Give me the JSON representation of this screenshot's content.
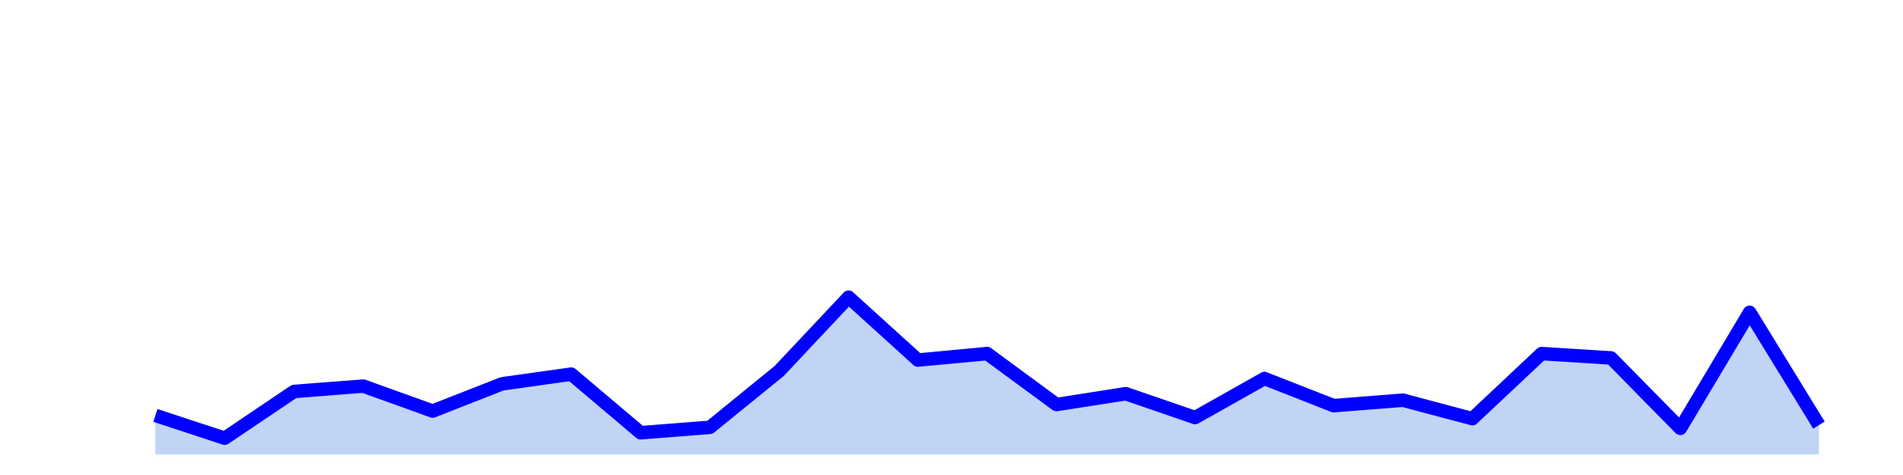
{
  "chart_data": {
    "type": "area",
    "title": "",
    "xlabel": "",
    "ylabel": "",
    "x": [
      1,
      2,
      3,
      4,
      5,
      6,
      7,
      8,
      9,
      10,
      11,
      12,
      13,
      14,
      15,
      16,
      17,
      18,
      19,
      20,
      21,
      22,
      23,
      24,
      25
    ],
    "series": [
      {
        "values": [
          36,
          15,
          58,
          63,
          40,
          65,
          74,
          20,
          25,
          77,
          145,
          87,
          93,
          46,
          56,
          34,
          70,
          45,
          50,
          33,
          93,
          89,
          24,
          131,
          27
        ]
      }
    ],
    "ylim": [
      0,
      410
    ],
    "grid": false,
    "legend": "none",
    "colors": {
      "line": "#0000ff",
      "fill": "#c2d4f5"
    }
  }
}
